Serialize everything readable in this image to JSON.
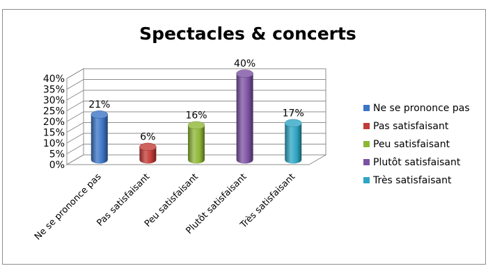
{
  "chart_data": {
    "type": "bar",
    "title": "Spectacles & concerts",
    "categories": [
      "Ne se prononce pas",
      "Pas satisfaisant",
      "Peu satisfaisant",
      "Plutôt satisfaisant",
      "Très satisfaisant"
    ],
    "values": [
      21,
      6,
      16,
      40,
      17
    ],
    "value_labels": [
      "21%",
      "6%",
      "16%",
      "40%",
      "17%"
    ],
    "colors": [
      "#3c74c6",
      "#c23b36",
      "#8fb637",
      "#7c52a3",
      "#2fa6c4"
    ],
    "yticks": [
      "0%",
      "5%",
      "10%",
      "15%",
      "20%",
      "25%",
      "30%",
      "35%",
      "40%"
    ],
    "ylim": [
      0,
      40
    ],
    "grid": true,
    "legend_position": "right",
    "style": "3d-cylinder"
  }
}
